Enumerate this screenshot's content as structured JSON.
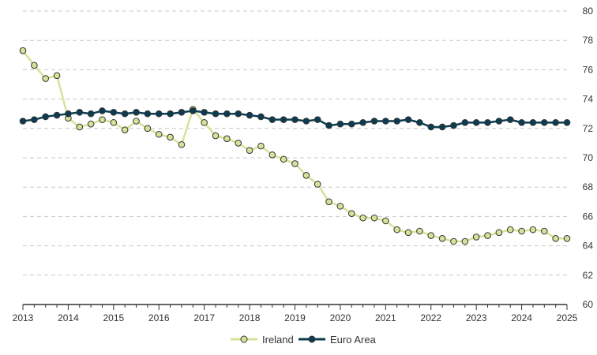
{
  "chart_data": {
    "type": "line",
    "title": "",
    "xlabel": "",
    "ylabel": "",
    "ylim": [
      60,
      80
    ],
    "yticks": [
      60,
      62,
      64,
      66,
      68,
      70,
      72,
      74,
      76,
      78,
      80
    ],
    "xlim": [
      2013.0,
      2025.0
    ],
    "xticks": [
      "2013",
      "2014",
      "2015",
      "2016",
      "2017",
      "2018",
      "2019",
      "2020",
      "2021",
      "2022",
      "2023",
      "2024",
      "2025"
    ],
    "grid": "horizontal dashed",
    "y_axis_side": "right",
    "legend_position": "bottom-center",
    "x": [
      2013.0,
      2013.25,
      2013.5,
      2013.75,
      2014.0,
      2014.25,
      2014.5,
      2014.75,
      2015.0,
      2015.25,
      2015.5,
      2015.75,
      2016.0,
      2016.25,
      2016.5,
      2016.75,
      2017.0,
      2017.25,
      2017.5,
      2017.75,
      2018.0,
      2018.25,
      2018.5,
      2018.75,
      2019.0,
      2019.25,
      2019.5,
      2019.75,
      2020.0,
      2020.25,
      2020.5,
      2020.75,
      2021.0,
      2021.25,
      2021.5,
      2021.75,
      2022.0,
      2022.25,
      2022.5,
      2022.75,
      2023.0,
      2023.25,
      2023.5,
      2023.75,
      2024.0,
      2024.25,
      2024.5,
      2024.75,
      2025.0
    ],
    "series": [
      {
        "name": "Ireland",
        "color": "#d4e39a",
        "values": [
          77.3,
          76.3,
          75.4,
          75.6,
          72.7,
          72.1,
          72.3,
          72.6,
          72.4,
          71.9,
          72.5,
          72.0,
          71.6,
          71.4,
          70.9,
          73.3,
          72.4,
          71.5,
          71.3,
          71.0,
          70.5,
          70.8,
          70.2,
          69.9,
          69.6,
          68.8,
          68.2,
          67.0,
          66.7,
          66.2,
          65.9,
          65.9,
          65.7,
          65.1,
          64.9,
          65.0,
          64.7,
          64.5,
          64.3,
          64.3,
          64.6,
          64.7,
          64.9,
          65.1,
          65.0,
          65.1,
          65.0,
          64.5,
          64.5
        ]
      },
      {
        "name": "Euro Area",
        "color": "#0b3c52",
        "values": [
          72.5,
          72.6,
          72.8,
          72.9,
          73.0,
          73.1,
          73.0,
          73.2,
          73.1,
          73.0,
          73.1,
          73.0,
          73.0,
          73.0,
          73.1,
          73.2,
          73.1,
          73.0,
          73.0,
          73.0,
          72.9,
          72.8,
          72.6,
          72.6,
          72.6,
          72.5,
          72.6,
          72.2,
          72.3,
          72.3,
          72.4,
          72.5,
          72.5,
          72.5,
          72.6,
          72.4,
          72.1,
          72.1,
          72.2,
          72.4,
          72.4,
          72.4,
          72.5,
          72.6,
          72.4,
          72.4,
          72.4,
          72.4,
          72.4
        ]
      }
    ]
  }
}
